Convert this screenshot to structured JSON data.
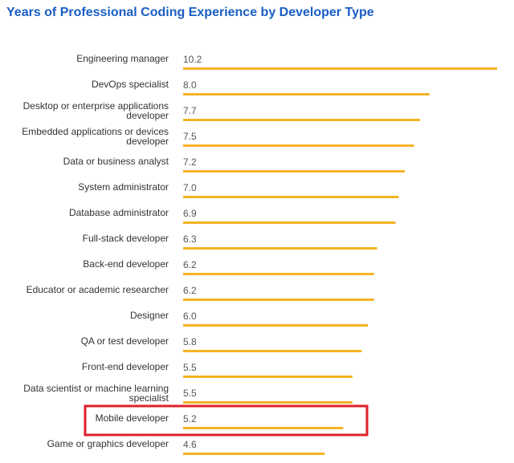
{
  "chart_data": {
    "type": "bar",
    "orientation": "horizontal",
    "title": "Years of Professional Coding Experience by Developer Type",
    "xlabel": "",
    "ylabel": "",
    "xlim": [
      0,
      10.2
    ],
    "grid": false,
    "legend": "none",
    "bar_color": "#f5b325",
    "highlight_color": "#e0202a",
    "highlight_category": "Mobile developer",
    "categories": [
      "Engineering manager",
      "DevOps specialist",
      "Desktop or enterprise applications developer",
      "Embedded applications or devices developer",
      "Data or business analyst",
      "System administrator",
      "Database administrator",
      "Full-stack developer",
      "Back-end developer",
      "Educator or academic researcher",
      "Designer",
      "QA or test developer",
      "Front-end developer",
      "Data scientist or machine learning specialist",
      "Mobile developer",
      "Game or graphics developer"
    ],
    "category_lines": [
      [
        "Engineering manager"
      ],
      [
        "DevOps specialist"
      ],
      [
        "Desktop or enterprise applications",
        "developer"
      ],
      [
        "Embedded applications or devices",
        "developer"
      ],
      [
        "Data or business analyst"
      ],
      [
        "System administrator"
      ],
      [
        "Database administrator"
      ],
      [
        "Full-stack developer"
      ],
      [
        "Back-end developer"
      ],
      [
        "Educator or academic researcher"
      ],
      [
        "Designer"
      ],
      [
        "QA or test developer"
      ],
      [
        "Front-end developer"
      ],
      [
        "Data scientist or machine learning",
        "specialist"
      ],
      [
        "Mobile developer"
      ],
      [
        "Game or graphics developer"
      ]
    ],
    "values": [
      10.2,
      8.0,
      7.7,
      7.5,
      7.2,
      7.0,
      6.9,
      6.3,
      6.2,
      6.2,
      6.0,
      5.8,
      5.5,
      5.5,
      5.2,
      4.6
    ],
    "value_labels": [
      "10.2",
      "8.0",
      "7.7",
      "7.5",
      "7.2",
      "7.0",
      "6.9",
      "6.3",
      "6.2",
      "6.2",
      "6.0",
      "5.8",
      "5.5",
      "5.5",
      "5.2",
      "4.6"
    ]
  }
}
